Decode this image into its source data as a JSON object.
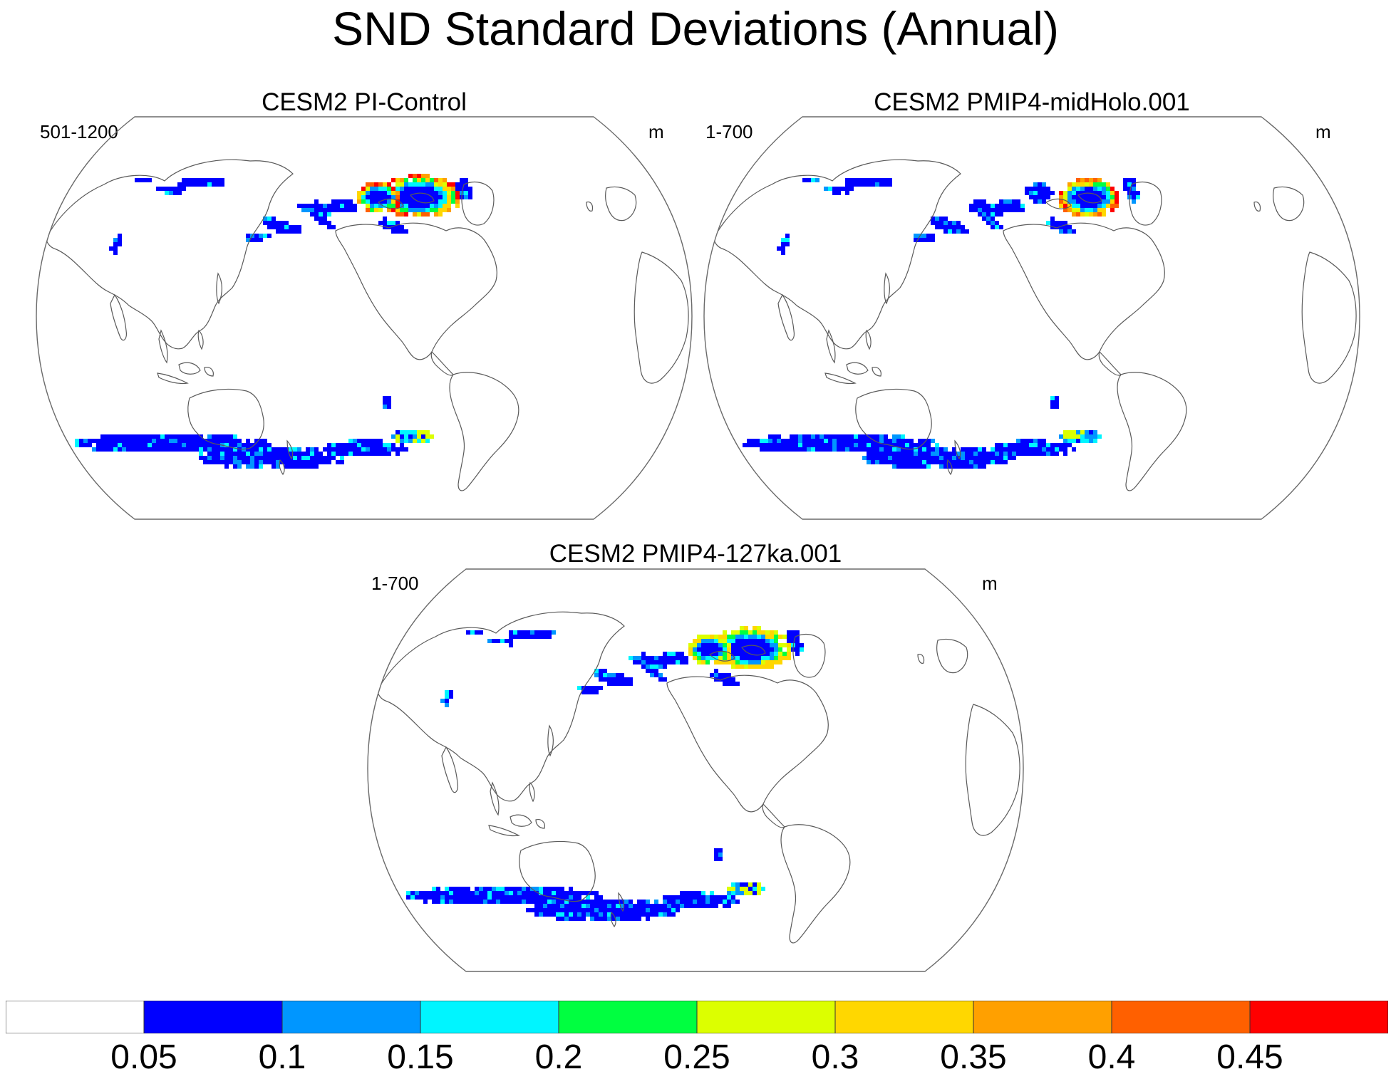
{
  "title": "SND Standard Deviations (Annual)",
  "colors": {
    "coast": "#5a5a5a",
    "frame": "#6a6a6a",
    "palette": [
      "#ffffff",
      "#0000ff",
      "#0096ff",
      "#00f5ff",
      "#00ff40",
      "#dcff00",
      "#ffd700",
      "#ffa000",
      "#ff6000",
      "#ff0000"
    ]
  },
  "panels": [
    {
      "title": "CESM2 PI-Control",
      "years": "501-1200",
      "units": "m"
    },
    {
      "title": "CESM2 PMIP4-midHolo.001",
      "years": "1-700",
      "units": "m"
    },
    {
      "title": "CESM2 PMIP4-127ka.001",
      "years": "1-700",
      "units": "m"
    }
  ],
  "colorbar": {
    "labels": [
      "0.05",
      "0.1",
      "0.15",
      "0.2",
      "0.25",
      "0.3",
      "0.35",
      "0.4",
      "0.45"
    ],
    "bins": 10
  }
}
